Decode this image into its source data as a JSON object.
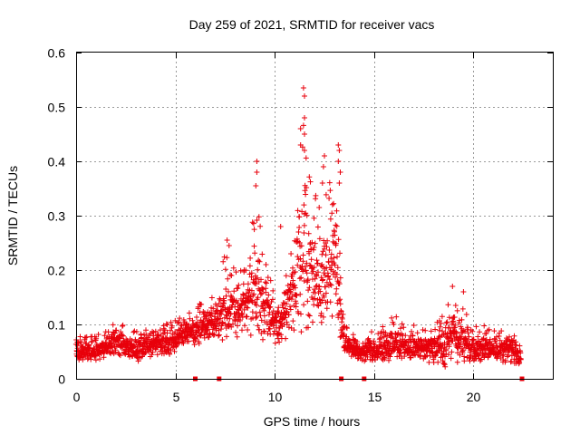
{
  "chart_data": {
    "type": "scatter",
    "title": "Day 259 of 2021, SRMTID for receiver vacs",
    "xlabel": "GPS time / hours",
    "ylabel": "SRMTID / TECUs",
    "xlim": [
      0,
      24
    ],
    "ylim": [
      0,
      0.6
    ],
    "xticks": [
      0,
      5,
      10,
      15,
      20
    ],
    "xtick_labels": [
      "0",
      "5",
      "10",
      "15",
      "20"
    ],
    "yticks": [
      0,
      0.1,
      0.2,
      0.3,
      0.4,
      0.5,
      0.6
    ],
    "ytick_labels": [
      "0",
      "0.1",
      "0.2",
      "0.3",
      "0.4",
      "0.5",
      "0.6"
    ],
    "grid": true,
    "marker": "+",
    "color": "#e8000b",
    "series": [
      {
        "name": "SRMTID",
        "envelope": {
          "x": [
            0,
            0.5,
            1,
            1.5,
            2,
            2.5,
            3,
            3.5,
            4,
            4.5,
            5,
            5.5,
            6,
            6.5,
            7,
            7.5,
            8,
            8.5,
            9,
            9.5,
            10,
            10.5,
            11,
            11.5,
            12,
            12.5,
            13,
            13.5,
            14,
            14.5,
            15,
            15.5,
            16,
            16.5,
            17,
            17.5,
            18,
            18.5,
            19,
            19.5,
            20,
            20.5,
            21,
            21.5,
            22,
            22.4
          ],
          "y_low": [
            0.03,
            0.03,
            0.03,
            0.04,
            0.04,
            0.04,
            0.03,
            0.04,
            0.04,
            0.04,
            0.05,
            0.06,
            0.06,
            0.07,
            0.06,
            0.07,
            0.07,
            0.07,
            0.06,
            0.06,
            0.06,
            0.07,
            0.07,
            0.08,
            0.07,
            0.08,
            0.08,
            0.05,
            0.03,
            0.03,
            0.03,
            0.03,
            0.03,
            0.03,
            0.03,
            0.03,
            0.03,
            0.02,
            0.03,
            0.03,
            0.03,
            0.03,
            0.03,
            0.03,
            0.03,
            0.02
          ],
          "y_high": [
            0.08,
            0.08,
            0.08,
            0.09,
            0.12,
            0.09,
            0.09,
            0.09,
            0.09,
            0.1,
            0.11,
            0.12,
            0.13,
            0.15,
            0.15,
            0.24,
            0.21,
            0.2,
            0.34,
            0.24,
            0.16,
            0.17,
            0.33,
            0.5,
            0.34,
            0.37,
            0.4,
            0.1,
            0.09,
            0.08,
            0.09,
            0.1,
            0.12,
            0.1,
            0.1,
            0.09,
            0.09,
            0.13,
            0.15,
            0.13,
            0.1,
            0.1,
            0.09,
            0.09,
            0.1,
            0.06
          ]
        },
        "peaks": [
          {
            "x": 9.1,
            "y": 0.4
          },
          {
            "x": 9.1,
            "y": 0.38
          },
          {
            "x": 9.05,
            "y": 0.355
          },
          {
            "x": 11.45,
            "y": 0.535
          },
          {
            "x": 11.5,
            "y": 0.52
          },
          {
            "x": 11.5,
            "y": 0.48
          },
          {
            "x": 11.3,
            "y": 0.46
          },
          {
            "x": 11.5,
            "y": 0.45
          },
          {
            "x": 11.3,
            "y": 0.43
          },
          {
            "x": 11.5,
            "y": 0.42
          },
          {
            "x": 12.5,
            "y": 0.41
          },
          {
            "x": 12.45,
            "y": 0.39
          },
          {
            "x": 12.4,
            "y": 0.36
          },
          {
            "x": 13.2,
            "y": 0.43
          },
          {
            "x": 13.25,
            "y": 0.42
          },
          {
            "x": 13.2,
            "y": 0.4
          },
          {
            "x": 13.3,
            "y": 0.38
          },
          {
            "x": 13.25,
            "y": 0.36
          },
          {
            "x": 10.3,
            "y": 0.28
          },
          {
            "x": 7.6,
            "y": 0.255
          },
          {
            "x": 7.7,
            "y": 0.245
          },
          {
            "x": 18.95,
            "y": 0.17
          },
          {
            "x": 19.5,
            "y": 0.16
          }
        ],
        "zero_markers_x": [
          6.0,
          7.2,
          13.35,
          14.5,
          22.45
        ]
      }
    ]
  }
}
